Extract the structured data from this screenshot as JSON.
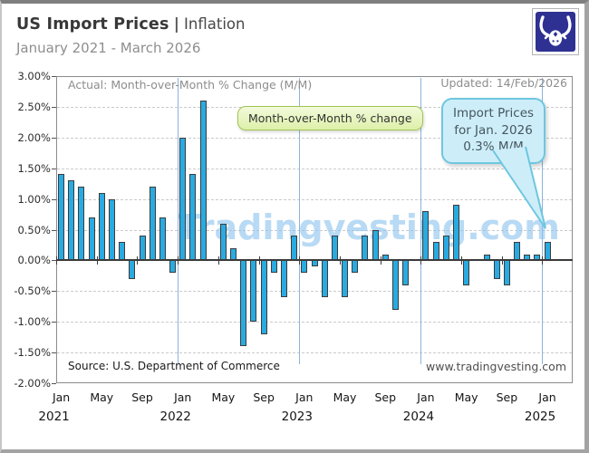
{
  "header": {
    "title_main": "US Import Prices",
    "title_sep": "|",
    "title_sub": "Inflation",
    "subtitle": "January 2021 - March 2026"
  },
  "logo": {
    "name": "tradingvesting-bull-logo",
    "bg_color": "#2e3192"
  },
  "notes": {
    "top_left": "Actual: Month-over-Month % Change (M/M)",
    "updated": "Updated: 14/Feb/2026",
    "source": "Source: U.S. Department of Commerce",
    "website": "www.tradingvesting.com",
    "watermark": "Tradingvesting.com"
  },
  "annotations": {
    "green_label": "Month-over-Month % change",
    "callout": {
      "line1": "Import Prices",
      "line2": "for Jan. 2026",
      "line3": "0.3% M/M"
    }
  },
  "chart_data": {
    "type": "bar",
    "title": "US Import Prices | Inflation",
    "subtitle_range": "January 2021 - March 2026",
    "unit": "% change month-over-month",
    "ylim": [
      -2.0,
      3.0
    ],
    "ytick_step": 0.5,
    "ytick_labels": [
      "3.00%",
      "2.50%",
      "2.00%",
      "1.50%",
      "1.00%",
      "0.50%",
      "0.00%",
      "-0.50%",
      "-1.00%",
      "-1.50%",
      "-2.00%"
    ],
    "x_month_labels": [
      "Jan",
      "May",
      "Sep",
      "Jan",
      "May",
      "Sep",
      "Jan",
      "May",
      "Sep",
      "Jan",
      "May",
      "Sep",
      "Jan"
    ],
    "x_year_labels": [
      "2021",
      "2022",
      "2023",
      "2024",
      "2025"
    ],
    "grid": "dashed horizontal every 0.5%, solid black zero line, light-blue vertical lines at year boundaries",
    "bar_color": "#29abe2",
    "bar_border_color": "#3c3c3c",
    "year_line_color": "#8ab4dc",
    "series": [
      {
        "year": "2021",
        "months": [
          "Jan",
          "Feb",
          "Mar",
          "Apr",
          "May",
          "Jun",
          "Jul",
          "Aug",
          "Sep",
          "Oct",
          "Nov",
          "Dec"
        ],
        "values": [
          1.4,
          1.3,
          1.2,
          0.7,
          1.1,
          1.0,
          0.3,
          -0.3,
          0.4,
          1.2,
          0.7,
          -0.2
        ]
      },
      {
        "year": "2022",
        "months": [
          "Jan",
          "Feb",
          "Mar",
          "Apr",
          "May",
          "Jun",
          "Jul",
          "Aug",
          "Sep",
          "Oct",
          "Nov",
          "Dec"
        ],
        "values": [
          2.0,
          1.4,
          2.6,
          0.0,
          0.6,
          0.2,
          -1.4,
          -1.0,
          -1.2,
          -0.2,
          -0.6,
          0.4
        ]
      },
      {
        "year": "2023",
        "months": [
          "Jan",
          "Feb",
          "Mar",
          "Apr",
          "May",
          "Jun",
          "Jul",
          "Aug",
          "Sep",
          "Oct",
          "Nov",
          "Dec"
        ],
        "values": [
          -0.2,
          -0.1,
          -0.6,
          0.4,
          -0.6,
          -0.2,
          0.4,
          0.5,
          0.1,
          -0.8,
          -0.4,
          0.0
        ]
      },
      {
        "year": "2024",
        "months": [
          "Jan",
          "Feb",
          "Mar",
          "Apr",
          "May",
          "Jun",
          "Jul",
          "Aug",
          "Sep",
          "Oct",
          "Nov",
          "Dec"
        ],
        "values": [
          0.8,
          0.3,
          0.4,
          0.9,
          -0.4,
          0.0,
          0.1,
          -0.3,
          -0.4,
          0.3,
          0.1,
          0.1
        ]
      },
      {
        "year": "2025",
        "months": [
          "Jan"
        ],
        "values": [
          0.3
        ]
      }
    ],
    "last_bar_callout_value": "0.3% M/M"
  }
}
